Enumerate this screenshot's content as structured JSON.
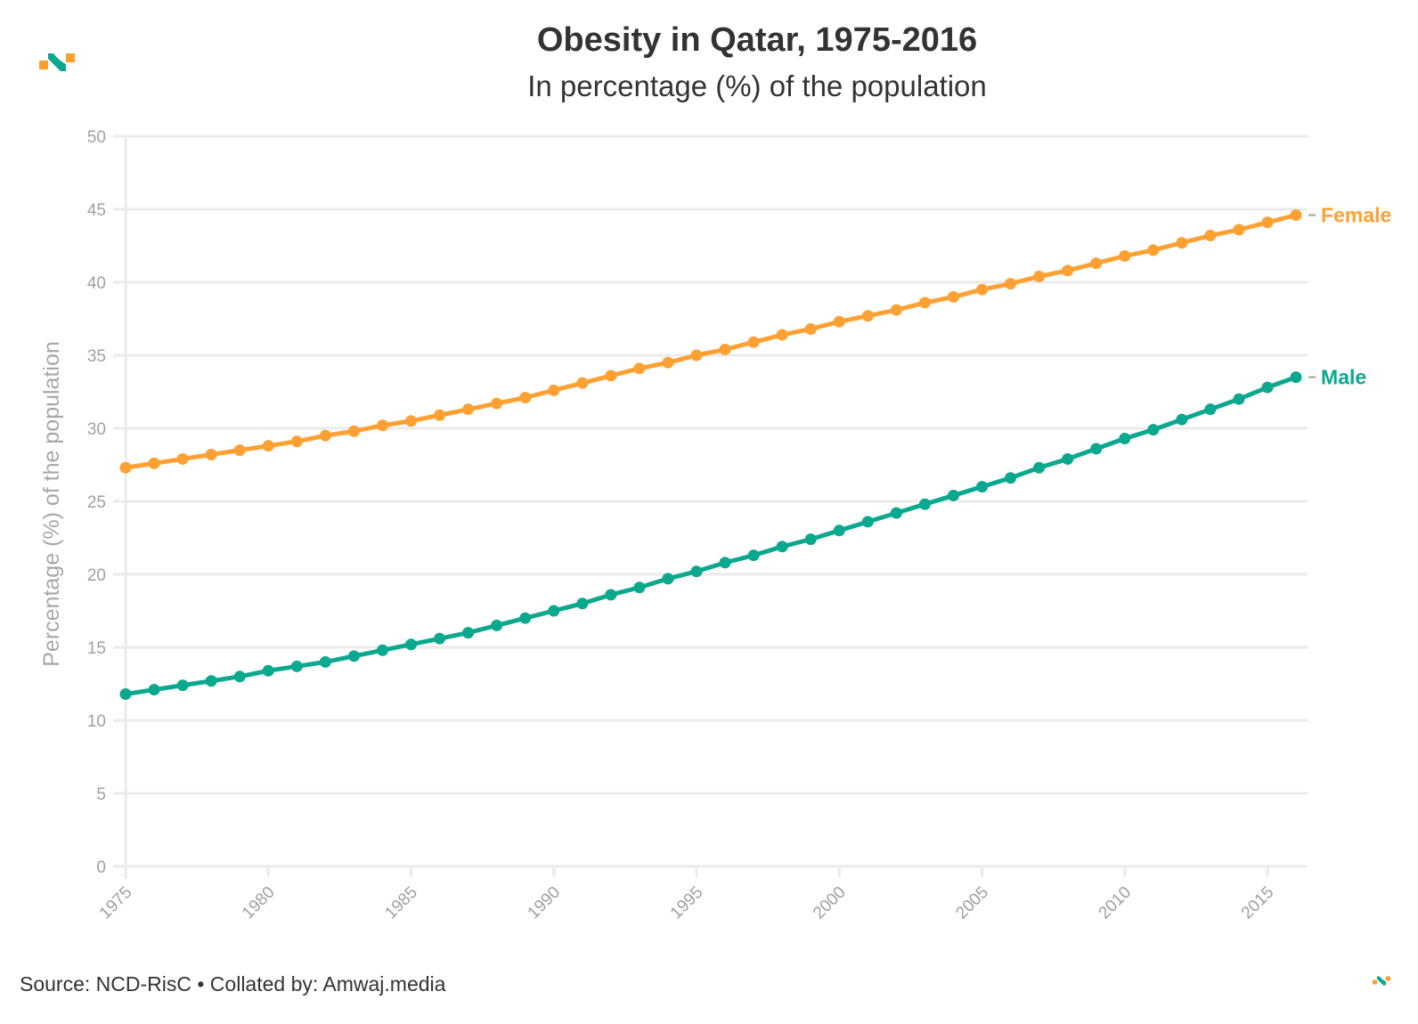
{
  "header": {
    "title": "Obesity in Qatar, 1975-2016",
    "subtitle": "In percentage (%) of the population"
  },
  "footer": {
    "source": "Source: NCD-RisC • Collated by: Amwaj.media"
  },
  "logo": {
    "name": "amwaj-logo",
    "colors": {
      "squares": "#ff9f2e",
      "wave": "#0aa88e"
    }
  },
  "chart_data": {
    "type": "line",
    "title": "Obesity in Qatar, 1975-2016",
    "subtitle": "In percentage (%) of the population",
    "xlabel": "",
    "ylabel": "Percentage (%) of the population",
    "xlim": [
      1975,
      2016
    ],
    "ylim": [
      0,
      50
    ],
    "yticks": [
      0,
      5,
      10,
      15,
      20,
      25,
      30,
      35,
      40,
      45,
      50
    ],
    "xticks": [
      1975,
      1980,
      1985,
      1990,
      1995,
      2000,
      2005,
      2010,
      2015
    ],
    "grid": "horizontal",
    "legend": "inline-right-end-labels",
    "x": [
      1975,
      1976,
      1977,
      1978,
      1979,
      1980,
      1981,
      1982,
      1983,
      1984,
      1985,
      1986,
      1987,
      1988,
      1989,
      1990,
      1991,
      1992,
      1993,
      1994,
      1995,
      1996,
      1997,
      1998,
      1999,
      2000,
      2001,
      2002,
      2003,
      2004,
      2005,
      2006,
      2007,
      2008,
      2009,
      2010,
      2011,
      2012,
      2013,
      2014,
      2015,
      2016
    ],
    "series": [
      {
        "name": "Female",
        "color": "#ffa033",
        "values": [
          27.3,
          27.6,
          27.9,
          28.2,
          28.5,
          28.8,
          29.1,
          29.5,
          29.8,
          30.2,
          30.5,
          30.9,
          31.3,
          31.7,
          32.1,
          32.6,
          33.1,
          33.6,
          34.1,
          34.5,
          35.0,
          35.4,
          35.9,
          36.4,
          36.8,
          37.3,
          37.7,
          38.1,
          38.6,
          39.0,
          39.5,
          39.9,
          40.4,
          40.8,
          41.3,
          41.8,
          42.2,
          42.7,
          43.2,
          43.6,
          44.1,
          44.6
        ]
      },
      {
        "name": "Male",
        "color": "#0aa88e",
        "values": [
          11.8,
          12.1,
          12.4,
          12.7,
          13.0,
          13.4,
          13.7,
          14.0,
          14.4,
          14.8,
          15.2,
          15.6,
          16.0,
          16.5,
          17.0,
          17.5,
          18.0,
          18.6,
          19.1,
          19.7,
          20.2,
          20.8,
          21.3,
          21.9,
          22.4,
          23.0,
          23.6,
          24.2,
          24.8,
          25.4,
          26.0,
          26.6,
          27.3,
          27.9,
          28.6,
          29.3,
          29.9,
          30.6,
          31.3,
          32.0,
          32.8,
          33.5
        ]
      }
    ]
  }
}
